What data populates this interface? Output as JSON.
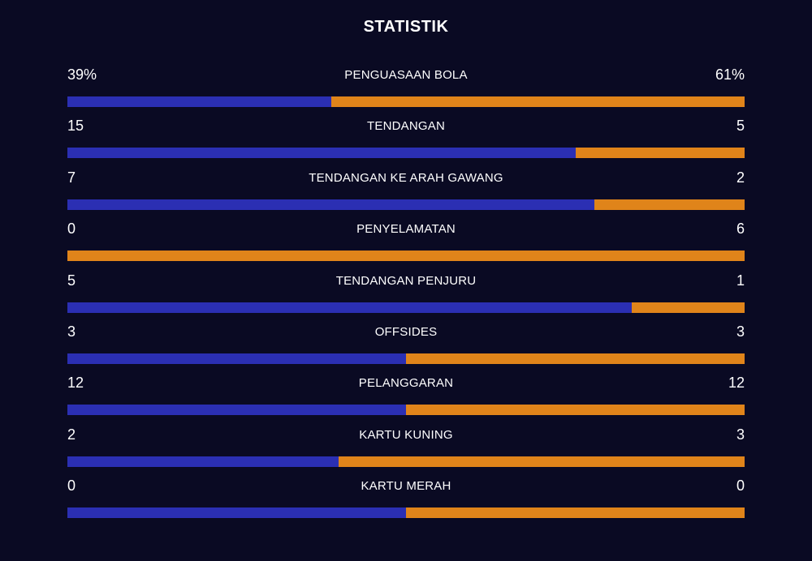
{
  "header": {
    "title": "STATISTIK"
  },
  "colors": {
    "background": "#0a0a23",
    "home_bar": "#2b2fb3",
    "away_bar": "#e0841a",
    "text": "#ffffff"
  },
  "stats": [
    {
      "label": "PENGUASAAN BOLA",
      "home": "39%",
      "away": "61%",
      "home_share": 0.39
    },
    {
      "label": "TENDANGAN",
      "home": "15",
      "away": "5",
      "home_share": 0.75
    },
    {
      "label": "TENDANGAN KE ARAH GAWANG",
      "home": "7",
      "away": "2",
      "home_share": 0.7778
    },
    {
      "label": "PENYELAMATAN",
      "home": "0",
      "away": "6",
      "home_share": 0.0
    },
    {
      "label": "TENDANGAN PENJURU",
      "home": "5",
      "away": "1",
      "home_share": 0.8333
    },
    {
      "label": "OFFSIDES",
      "home": "3",
      "away": "3",
      "home_share": 0.5
    },
    {
      "label": "PELANGGARAN",
      "home": "12",
      "away": "12",
      "home_share": 0.5
    },
    {
      "label": "KARTU KUNING",
      "home": "2",
      "away": "3",
      "home_share": 0.4
    },
    {
      "label": "KARTU MERAH",
      "home": "0",
      "away": "0",
      "home_share": 0.5
    }
  ]
}
